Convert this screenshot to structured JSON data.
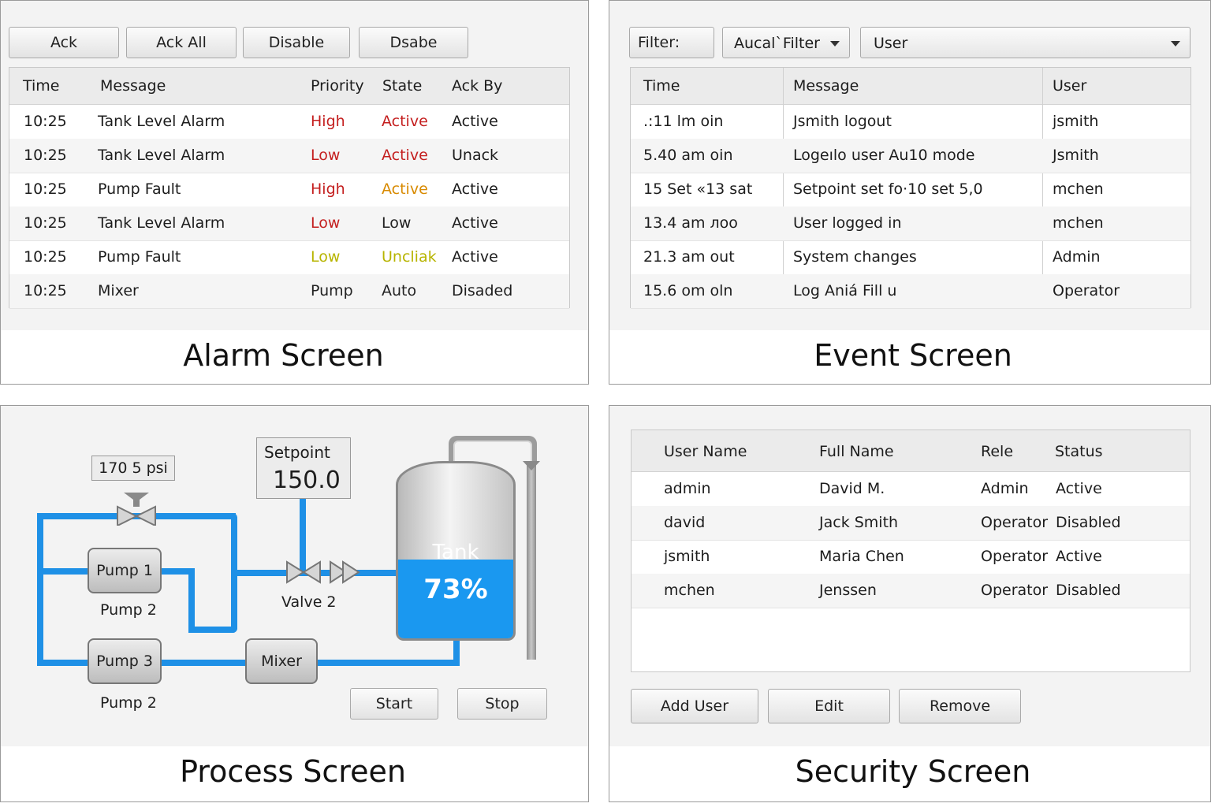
{
  "alarm": {
    "caption": "Alarm Screen",
    "buttons": [
      "Ack",
      "Ack All",
      "Disable",
      "Dsabe"
    ],
    "columns": [
      "Time",
      "Message",
      "Priority",
      "State",
      "Ack By"
    ],
    "rows": [
      {
        "time": "10:25",
        "message": "Tank Level Alarm",
        "priority": "High",
        "state": "Active",
        "ack": "Active",
        "pcolor": "#c41f1f",
        "scolor": "#c41f1f"
      },
      {
        "time": "10:25",
        "message": "Tank Level Alarm",
        "priority": "Low",
        "state": "Active",
        "ack": "Unack",
        "pcolor": "#c41f1f",
        "scolor": "#c41f1f"
      },
      {
        "time": "10:25",
        "message": "Pump Fault",
        "priority": "High",
        "state": "Active",
        "ack": "Active",
        "pcolor": "#c41f1f",
        "scolor": "#d88a00"
      },
      {
        "time": "10:25",
        "message": "Tank Level Alarm",
        "priority": "Low",
        "state": "Low",
        "ack": "Active",
        "pcolor": "#c41f1f",
        "scolor": "#222222"
      },
      {
        "time": "10:25",
        "message": "Pump Fault",
        "priority": "Low",
        "state": "Uncliak",
        "ack": "Active",
        "pcolor": "#b7b400",
        "scolor": "#b7b400"
      },
      {
        "time": "10:25",
        "message": "Mixer",
        "priority": "Pump",
        "state": "Auto",
        "ack": "Disaded",
        "pcolor": "#222222",
        "scolor": "#222222"
      }
    ]
  },
  "event": {
    "caption": "Event Screen",
    "filter_label": "Filter:",
    "filter_value": "Aucal`Filter",
    "user_value": "User",
    "columns": [
      "Time",
      "Message",
      "User"
    ],
    "rows": [
      {
        "time": ".:11 lm oin",
        "message": "Jsmith logout",
        "user": "jsmith"
      },
      {
        "time": "5.40 am oin",
        "message": "Logeılo user Au10 mode",
        "user": "Jsmith"
      },
      {
        "time": "15 Set «13 sat",
        "message": "Setpoint set fo·10 set 5,0",
        "user": "mchen"
      },
      {
        "time": "13.4 am лоо",
        "message": "User logged in",
        "user": "mchen"
      },
      {
        "time": "21.3 am out",
        "message": "System changes",
        "user": "Admin"
      },
      {
        "time": "15.6 om oln",
        "message": "Log Aniá Fill u",
        "user": "Operator"
      }
    ]
  },
  "process": {
    "caption": "Process Screen",
    "pressure": "170 5 psi",
    "setpoint_label": "Setpoint",
    "setpoint_value": "150.0",
    "pump1": "Pump 1",
    "pump1_sub": "Pump 2",
    "pump3": "Pump 3",
    "pump3_sub": "Pump 2",
    "mixer": "Mixer",
    "valve2": "Valve 2",
    "tank_label": "Tank",
    "tank_level_text": "73%",
    "tank_level": 0.73,
    "start": "Start",
    "stop": "Stop",
    "pipe_color": "#1e90e6",
    "tank_color": "#1a98f0"
  },
  "security": {
    "caption": "Security Screen",
    "columns": [
      "User Name",
      "Full Name",
      "Rele",
      "Status"
    ],
    "rows": [
      {
        "user": "admin",
        "full": "David M.",
        "role": "Admin",
        "status": "Active"
      },
      {
        "user": "david",
        "full": "Jack Smith",
        "role": "Operator",
        "status": "Disabled"
      },
      {
        "user": "jsmith",
        "full": "Maria Chen",
        "role": "Operator",
        "status": "Active"
      },
      {
        "user": "mchen",
        "full": "Jenssen",
        "role": "Operator",
        "status": "Disabled"
      }
    ],
    "buttons": [
      "Add User",
      "Edit",
      "Remove"
    ]
  }
}
